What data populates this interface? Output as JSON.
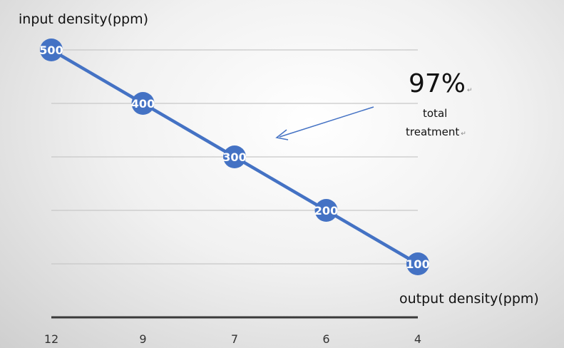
{
  "chart_data": {
    "type": "line",
    "title": "",
    "ylabel": "input density(ppm)",
    "xlabel": "output density(ppm)",
    "categories": [
      "12",
      "9",
      "7",
      "6",
      "4"
    ],
    "series": [
      {
        "values": [
          500,
          400,
          300,
          200,
          100
        ],
        "color": "#4472c4"
      }
    ],
    "data_labels": [
      "500",
      "400",
      "300",
      "200",
      "100"
    ],
    "ylim": [
      0,
      500
    ],
    "grid": true,
    "annotation": {
      "value": "97%",
      "line1": "total",
      "line2": "treatment"
    },
    "colors": {
      "series": "#4472c4",
      "gridline": "#c8c8c8",
      "baseline": "#3a3a3a",
      "label_text": "#ffffff"
    }
  }
}
